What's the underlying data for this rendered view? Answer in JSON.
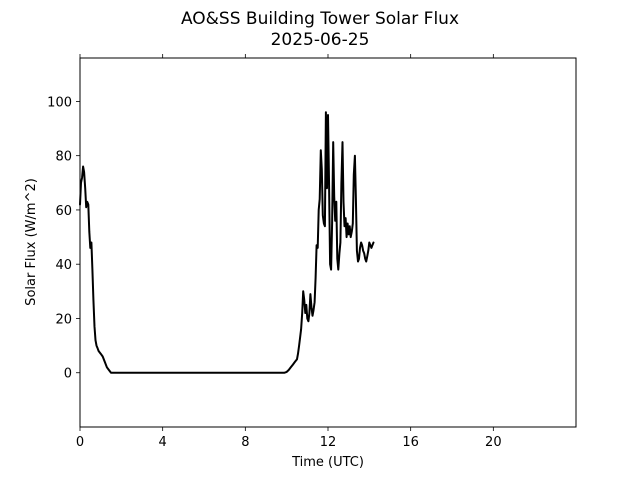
{
  "chart_data": {
    "type": "line",
    "title": "AO&SS Building Tower Solar Flux",
    "subtitle": "2025-06-25",
    "xlabel": "Time (UTC)",
    "ylabel": "Solar Flux (W/m^2)",
    "xlim": [
      0,
      24
    ],
    "ylim": [
      -20,
      116
    ],
    "xticks": [
      0,
      4,
      8,
      12,
      16,
      20
    ],
    "yticks": [
      0,
      20,
      40,
      60,
      80,
      100
    ],
    "grid": false,
    "line_color": "#000000",
    "series": [
      {
        "x": [
          0.0,
          0.05,
          0.1,
          0.15,
          0.2,
          0.25,
          0.3,
          0.35,
          0.4,
          0.45,
          0.5,
          0.55,
          0.6,
          0.65,
          0.7,
          0.75,
          0.8,
          0.85,
          0.9,
          1.0,
          1.1,
          1.2,
          1.3,
          1.4,
          1.5,
          1.6,
          1.7,
          1.8,
          2.0,
          4.0,
          6.0,
          8.0,
          9.0,
          9.9,
          10.0,
          10.1,
          10.2,
          10.3,
          10.4,
          10.5,
          10.55,
          10.6,
          10.65,
          10.7,
          10.75,
          10.8,
          10.85,
          10.9,
          10.95,
          11.0,
          11.05,
          11.1,
          11.15,
          11.2,
          11.25,
          11.3,
          11.35,
          11.4,
          11.45,
          11.5,
          11.55,
          11.6,
          11.65,
          11.7,
          11.75,
          11.8,
          11.85,
          11.9,
          11.95,
          12.0,
          12.05,
          12.1,
          12.15,
          12.2,
          12.25,
          12.3,
          12.35,
          12.4,
          12.45,
          12.5,
          12.55,
          12.6,
          12.65,
          12.7,
          12.75,
          12.8,
          12.85,
          12.9,
          12.95,
          13.0,
          13.05,
          13.1,
          13.15,
          13.2,
          13.25,
          13.3,
          13.35,
          13.4,
          13.45,
          13.5,
          13.55,
          13.6,
          13.65,
          13.7,
          13.75,
          13.8,
          13.85,
          13.9,
          13.95,
          14.0,
          14.05,
          14.1,
          14.15,
          14.2
        ],
        "y": [
          62,
          70,
          72,
          76,
          74,
          68,
          61,
          63,
          62,
          52,
          46,
          48,
          38,
          27,
          17,
          12,
          10,
          9,
          8,
          7,
          6,
          4,
          2,
          1,
          0,
          0,
          0,
          0,
          0,
          0,
          0,
          0,
          0,
          0,
          0.3,
          1,
          2,
          3,
          4,
          5,
          7,
          10,
          13,
          16,
          22,
          30,
          27,
          22,
          25,
          20,
          19,
          22,
          29,
          24,
          21,
          23,
          26,
          35,
          47,
          46,
          60,
          64,
          82,
          75,
          58,
          55,
          54,
          96,
          68,
          95,
          71,
          40,
          38,
          55,
          85,
          65,
          56,
          63,
          42,
          38,
          44,
          48,
          70,
          85,
          63,
          54,
          57,
          50,
          55,
          51,
          54,
          50,
          52,
          55,
          73,
          80,
          64,
          45,
          41,
          42,
          46,
          48,
          47,
          45,
          44,
          42,
          41,
          43,
          45,
          48,
          47,
          46,
          47,
          48
        ]
      }
    ]
  }
}
